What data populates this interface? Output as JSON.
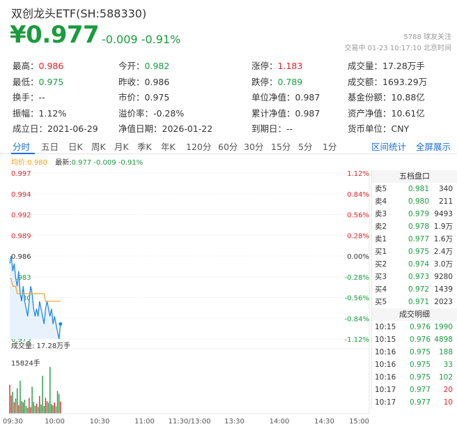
{
  "header": {
    "title": "双创龙头ETF(SH:588330)",
    "price": "¥0.977",
    "change": "-0.009 -0.91%",
    "followers": "5788 球友关注",
    "status_time": "交易中 01-23 10:17:10 北京时间"
  },
  "stats": [
    [
      {
        "label": "最高：",
        "value": "0.986",
        "tone": "red"
      },
      {
        "label": "今开：",
        "value": "0.982",
        "tone": "green"
      },
      {
        "label": "涨停：",
        "value": "1.183",
        "tone": "red"
      },
      {
        "label": "成交量：",
        "value": "17.28万手",
        "tone": ""
      }
    ],
    [
      {
        "label": "最低：",
        "value": "0.975",
        "tone": "green"
      },
      {
        "label": "昨收：",
        "value": "0.986",
        "tone": ""
      },
      {
        "label": "跌停：",
        "value": "0.789",
        "tone": "green"
      },
      {
        "label": "成交额：",
        "value": "1693.29万",
        "tone": ""
      }
    ],
    [
      {
        "label": "换手：",
        "value": "--",
        "tone": ""
      },
      {
        "label": "市价：",
        "value": "0.975",
        "tone": ""
      },
      {
        "label": "单位净值：",
        "value": "0.987",
        "tone": ""
      },
      {
        "label": "基金份额：",
        "value": "10.88亿",
        "tone": ""
      }
    ],
    [
      {
        "label": "振幅：",
        "value": "1.12%",
        "tone": ""
      },
      {
        "label": "溢价率：",
        "value": "-0.28%",
        "tone": ""
      },
      {
        "label": "累计净值：",
        "value": "0.987",
        "tone": ""
      },
      {
        "label": "资产净值：",
        "value": "10.61亿",
        "tone": ""
      }
    ],
    [
      {
        "label": "成立日：",
        "value": "2021-06-29",
        "tone": ""
      },
      {
        "label": "净值日期：",
        "value": "2026-01-22",
        "tone": ""
      },
      {
        "label": "到期日：",
        "value": "--",
        "tone": ""
      },
      {
        "label": "货币单位：",
        "value": "CNY",
        "tone": ""
      }
    ]
  ],
  "tabs": [
    "分时",
    "五日",
    "日K",
    "周K",
    "月K",
    "季K",
    "年K",
    "120分",
    "60分",
    "30分",
    "15分",
    "5分",
    "1分"
  ],
  "tabs_right": [
    "区间统计",
    "全屏展示"
  ],
  "legend": {
    "avg_label": "均价:",
    "avg_value": "0.980",
    "last_label": "最新:",
    "last_value": "0.977 -0.009 -0.91%"
  },
  "chart_data": {
    "type": "line",
    "title": "",
    "price_ticks": [
      "0.997",
      "0.994",
      "0.992",
      "0.989",
      "0.986",
      "0.983",
      "0.980",
      "0.978",
      "0.975"
    ],
    "pct_ticks": [
      "1.12%",
      "0.84%",
      "0.56%",
      "0.28%",
      "0.00%",
      "-0.28%",
      "-0.56%",
      "-0.84%",
      "-1.12%"
    ],
    "price_range": [
      0.975,
      0.997
    ],
    "x_ticks": [
      "09:30",
      "10:00",
      "10:30",
      "11:00",
      "11:30/13:00",
      "13:30",
      "14:00",
      "14:30",
      "15:00"
    ],
    "volume_label": "成交量: 17.28万手",
    "volume_max_label": "15824手",
    "price_series": [
      0.985,
      0.986,
      0.984,
      0.985,
      0.983,
      0.982,
      0.984,
      0.981,
      0.98,
      0.982,
      0.98,
      0.979,
      0.978,
      0.98,
      0.982,
      0.981,
      0.979,
      0.978,
      0.979,
      0.978,
      0.98,
      0.979,
      0.978,
      0.977,
      0.979,
      0.98,
      0.979,
      0.978,
      0.979,
      0.977,
      0.978,
      0.977,
      0.976,
      0.975,
      0.977
    ],
    "avg_series": [
      0.983,
      0.983,
      0.982,
      0.982,
      0.982,
      0.981,
      0.981,
      0.981,
      0.981,
      0.981,
      0.981,
      0.981,
      0.981,
      0.981,
      0.981,
      0.981,
      0.981,
      0.981,
      0.981,
      0.981,
      0.981,
      0.981,
      0.981,
      0.981,
      0.98,
      0.98,
      0.98,
      0.98,
      0.98,
      0.98,
      0.98,
      0.98,
      0.98,
      0.98,
      0.98
    ],
    "volume_series": [
      9800,
      6200,
      7400,
      3900,
      5100,
      8600,
      2900,
      11200,
      4300,
      3800,
      4700,
      2600,
      1900,
      5300,
      2200,
      9100,
      4000,
      2700,
      3400,
      2300,
      6000,
      3100,
      12800,
      2600,
      5400,
      4200,
      3700,
      15824,
      3200,
      2800,
      3800,
      2500,
      7700,
      6700,
      4100
    ],
    "volume_colors": [
      "red",
      "red",
      "green",
      "red",
      "green",
      "green",
      "red",
      "green",
      "green",
      "red",
      "green",
      "green",
      "green",
      "red",
      "red",
      "green",
      "green",
      "green",
      "red",
      "green",
      "red",
      "green",
      "green",
      "green",
      "red",
      "red",
      "green",
      "green",
      "red",
      "green",
      "red",
      "green",
      "green",
      "green",
      "red"
    ],
    "colors": {
      "price": "#1e88e5",
      "avg": "#f39c12",
      "up": "#e0242b",
      "down": "#1a9c3e"
    }
  },
  "order_book": {
    "title": "五档盘口",
    "asks": [
      {
        "label": "卖5",
        "price": "0.981",
        "qty": "340",
        "tone": "green"
      },
      {
        "label": "卖4",
        "price": "0.980",
        "qty": "211",
        "tone": "green"
      },
      {
        "label": "卖3",
        "price": "0.979",
        "qty": "9493",
        "tone": "green"
      },
      {
        "label": "卖2",
        "price": "0.978",
        "qty": "1.9万",
        "tone": "green"
      },
      {
        "label": "卖1",
        "price": "0.977",
        "qty": "1.6万",
        "tone": "green"
      }
    ],
    "bids": [
      {
        "label": "买1",
        "price": "0.975",
        "qty": "2.4万",
        "tone": "green"
      },
      {
        "label": "买2",
        "price": "0.974",
        "qty": "3.0万",
        "tone": "green"
      },
      {
        "label": "买3",
        "price": "0.973",
        "qty": "9280",
        "tone": "green"
      },
      {
        "label": "买4",
        "price": "0.972",
        "qty": "1439",
        "tone": "green"
      },
      {
        "label": "买5",
        "price": "0.971",
        "qty": "2023",
        "tone": "green"
      }
    ],
    "trades_title": "成交明细",
    "trades": [
      {
        "time": "10:15",
        "price": "0.976",
        "qty": "1990",
        "tone": "green"
      },
      {
        "time": "10:15",
        "price": "0.976",
        "qty": "4898",
        "tone": "green"
      },
      {
        "time": "10:16",
        "price": "0.975",
        "qty": "188",
        "tone": "green"
      },
      {
        "time": "10:16",
        "price": "0.975",
        "qty": "33",
        "tone": "green"
      },
      {
        "time": "10:16",
        "price": "0.975",
        "qty": "102",
        "tone": "green"
      },
      {
        "time": "10:17",
        "price": "0.977",
        "qty": "20",
        "tone": "red"
      },
      {
        "time": "10:17",
        "price": "0.977",
        "qty": "10",
        "tone": "red"
      }
    ]
  }
}
